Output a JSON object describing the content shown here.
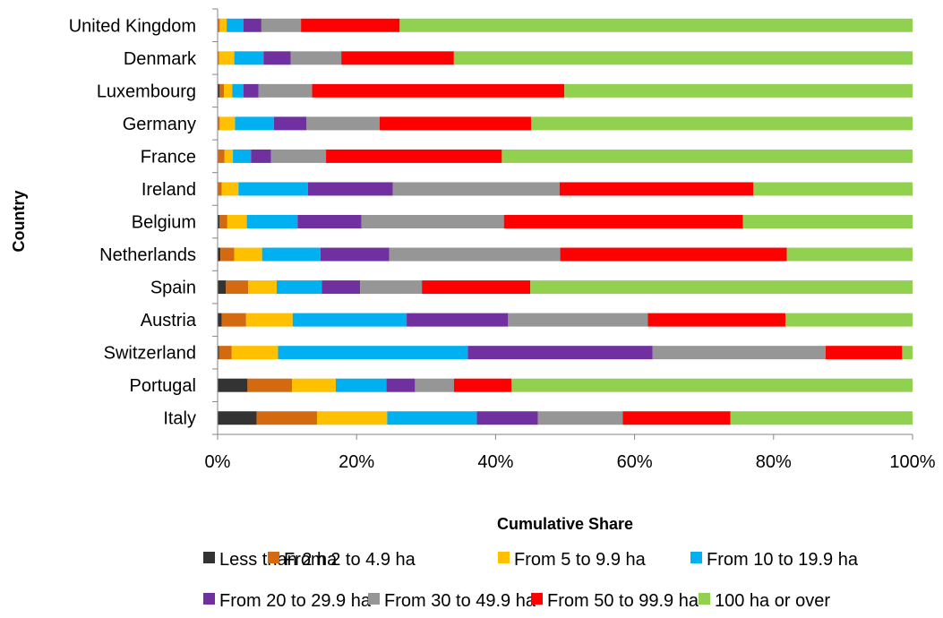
{
  "chart_data": {
    "type": "bar",
    "orientation": "horizontal",
    "stacked": "percent",
    "xlabel": "Cumulative Share",
    "ylabel": "Country",
    "xlim": [
      0,
      100
    ],
    "x_ticks": [
      "0%",
      "20%",
      "40%",
      "60%",
      "80%",
      "100%"
    ],
    "grid": false,
    "legend_position": "bottom",
    "categories": [
      "United Kingdom",
      "Denmark",
      "Luxembourg",
      "Germany",
      "France",
      "Ireland",
      "Belgium",
      "Netherlands",
      "Spain",
      "Austria",
      "Switzerland",
      "Portugal",
      "Italy"
    ],
    "series": [
      {
        "name": "Less than 2 ha",
        "color": "#333333",
        "values": [
          0.1,
          0.1,
          0.3,
          0.1,
          0.1,
          0.1,
          0.3,
          0.4,
          1.2,
          0.6,
          0.2,
          4.3,
          5.6
        ]
      },
      {
        "name": "From 2 to 4.9 ha",
        "color": "#D46A10",
        "values": [
          0.2,
          0.1,
          0.6,
          0.2,
          0.9,
          0.5,
          1.1,
          2.0,
          3.2,
          3.5,
          1.8,
          6.4,
          8.7
        ]
      },
      {
        "name": "From 5 to 9.9 ha",
        "color": "#FFC000",
        "values": [
          1.0,
          2.2,
          1.2,
          2.2,
          1.2,
          2.4,
          2.8,
          4.0,
          4.1,
          6.7,
          6.7,
          6.3,
          10.1
        ]
      },
      {
        "name": "From 10 to 19.9 ha",
        "color": "#00B0F0",
        "values": [
          2.4,
          4.2,
          1.6,
          5.6,
          2.6,
          10.0,
          7.3,
          8.4,
          6.5,
          16.4,
          27.3,
          7.3,
          12.9
        ]
      },
      {
        "name": "From 20 to 29.9 ha",
        "color": "#7030A0",
        "values": [
          2.6,
          3.9,
          2.2,
          4.7,
          2.9,
          12.2,
          9.2,
          9.9,
          5.5,
          14.6,
          26.6,
          4.1,
          8.8
        ]
      },
      {
        "name": "From 30 to 49.9 ha",
        "color": "#969696",
        "values": [
          5.7,
          7.3,
          7.7,
          10.5,
          7.9,
          24.0,
          20.5,
          24.6,
          8.9,
          20.1,
          24.9,
          5.6,
          12.2
        ]
      },
      {
        "name": "From 50 to 99.9 ha",
        "color": "#FF0000",
        "values": [
          14.2,
          16.2,
          36.3,
          21.8,
          25.3,
          27.9,
          34.4,
          32.6,
          15.6,
          19.8,
          11.0,
          8.3,
          15.5
        ]
      },
      {
        "name": "100 ha or over",
        "color": "#92D050",
        "values": [
          73.8,
          66.0,
          50.1,
          54.9,
          59.1,
          22.9,
          24.4,
          18.1,
          55.0,
          18.3,
          1.5,
          58.0,
          26.2
        ]
      }
    ]
  }
}
